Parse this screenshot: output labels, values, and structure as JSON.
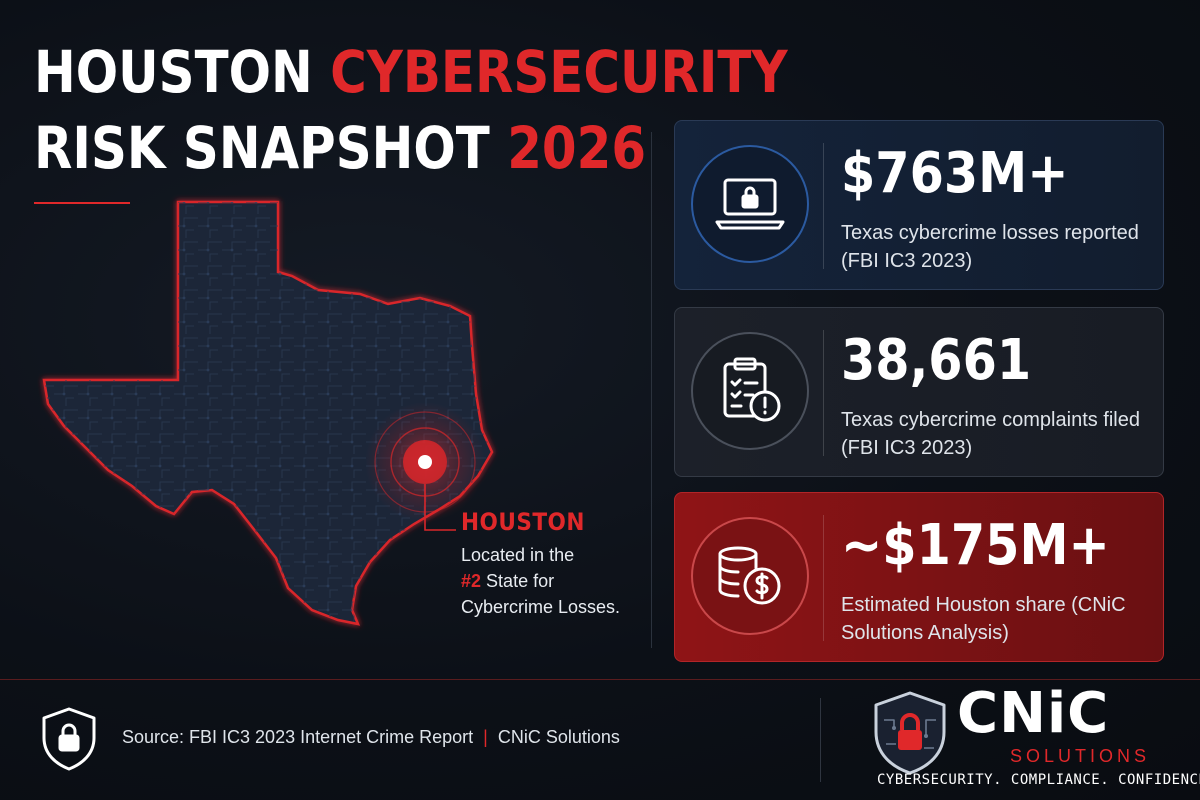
{
  "header": {
    "title_line1_white": "HOUSTON",
    "title_line1_red": "CYBERSECURITY",
    "title_line2_white": "RISK SNAPSHOT",
    "title_line2_red": "2026"
  },
  "map": {
    "callout_title": "HOUSTON",
    "callout_line1": "Located in the",
    "callout_rank": "#2",
    "callout_line2_rest": "State for",
    "callout_line3": "Cybercrime Losses."
  },
  "stats": [
    {
      "icon": "laptop-lock-icon",
      "value": "$763M+",
      "description": "Texas cybercrime losses reported (FBI IC3 2023)"
    },
    {
      "icon": "clipboard-alert-icon",
      "value": "38,661",
      "description": "Texas cybercrime complaints filed (FBI IC3 2023)"
    },
    {
      "icon": "coins-dollar-icon",
      "value": "~$175M+",
      "description": "Estimated Houston share (CNiC Solutions Analysis)"
    }
  ],
  "footer": {
    "source": "Source: FBI IC3 2023 Internet Crime Report",
    "separator": "|",
    "credit": "CNiC Solutions"
  },
  "logo": {
    "name": "CNiC",
    "sub": "SOLUTIONS",
    "tagline": "CYBERSECURITY. COMPLIANCE. CONFIDENCE."
  },
  "colors": {
    "accent_red": "#e0282a",
    "background": "#0c1017",
    "card_blue": "#14233a",
    "card_gray": "#1c2029",
    "card_red": "#8f1416"
  }
}
